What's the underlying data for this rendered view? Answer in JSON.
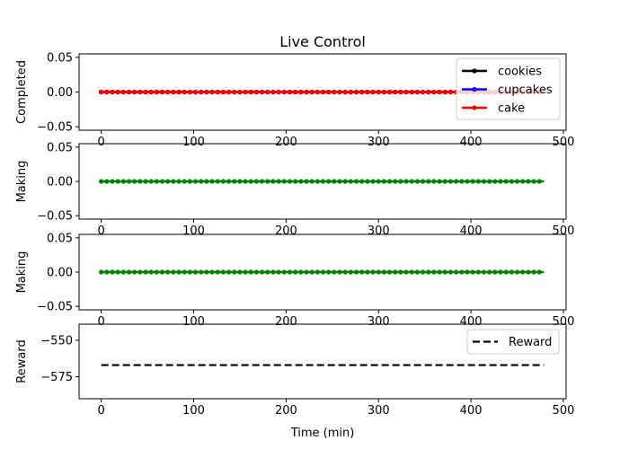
{
  "chart_data": [
    {
      "type": "line",
      "title": "Live Control",
      "ylabel": "Completed",
      "xlabel": "",
      "xlim": [
        -23.95,
        502.95
      ],
      "ylim": [
        -0.055,
        0.055
      ],
      "xticks": [
        0,
        100,
        200,
        300,
        400,
        500
      ],
      "yticks": [
        -0.05,
        0.0,
        0.05
      ],
      "ytick_labels": [
        "−0.05",
        "0.00",
        "0.05"
      ],
      "x_range": [
        0,
        479
      ],
      "legend_position": "upper-right",
      "series": [
        {
          "name": "cookies",
          "color": "#000000",
          "marker": "dot",
          "value": 0
        },
        {
          "name": "cupcakes",
          "color": "#0000ff",
          "marker": "dot",
          "value": 0
        },
        {
          "name": "cake",
          "color": "#ff0000",
          "marker": "dot",
          "value": 0
        }
      ]
    },
    {
      "type": "line",
      "title": "",
      "ylabel": "Making",
      "xlabel": "",
      "xlim": [
        -23.95,
        502.95
      ],
      "ylim": [
        -0.055,
        0.055
      ],
      "xticks": [
        0,
        100,
        200,
        300,
        400,
        500
      ],
      "yticks": [
        -0.05,
        0.0,
        0.05
      ],
      "ytick_labels": [
        "−0.05",
        "0.00",
        "0.05"
      ],
      "x_range": [
        0,
        479
      ],
      "series": [
        {
          "color": "#008000",
          "marker": "dot",
          "value": 0
        }
      ]
    },
    {
      "type": "line",
      "title": "",
      "ylabel": "Making",
      "xlabel": "",
      "xlim": [
        -23.95,
        502.95
      ],
      "ylim": [
        -0.055,
        0.055
      ],
      "xticks": [
        0,
        100,
        200,
        300,
        400,
        500
      ],
      "yticks": [
        -0.05,
        0.0,
        0.05
      ],
      "ytick_labels": [
        "−0.05",
        "0.00",
        "0.05"
      ],
      "x_range": [
        0,
        479
      ],
      "series": [
        {
          "color": "#008000",
          "marker": "dot",
          "value": 0
        }
      ]
    },
    {
      "type": "line",
      "title": "",
      "ylabel": "Reward",
      "xlabel": "Time (min)",
      "xlim": [
        -23.95,
        502.95
      ],
      "ylim": [
        -590,
        -539
      ],
      "xticks": [
        0,
        100,
        200,
        300,
        400,
        500
      ],
      "yticks": [
        -575,
        -550
      ],
      "ytick_labels": [
        "−575",
        "−550"
      ],
      "x_range": [
        0,
        479
      ],
      "legend_position": "upper-right",
      "series": [
        {
          "name": "Reward",
          "color": "#000000",
          "style": "dashed",
          "value": -567
        }
      ]
    }
  ]
}
